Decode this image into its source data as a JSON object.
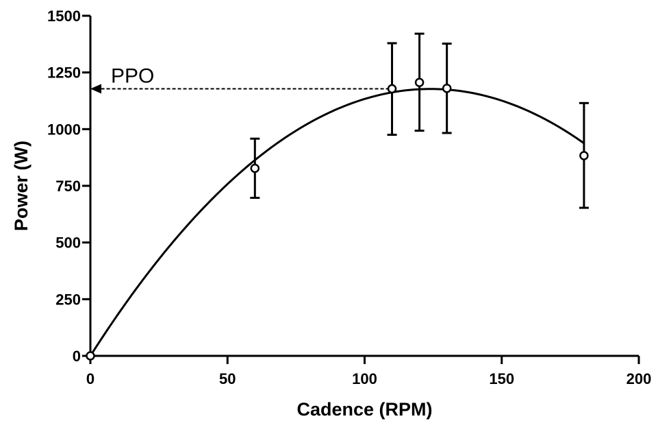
{
  "chart_data": {
    "type": "scatter",
    "title": "",
    "xlabel": "Cadence (RPM)",
    "ylabel": "Power (W)",
    "xlim": [
      0,
      200
    ],
    "ylim": [
      0,
      1500
    ],
    "xticks": [
      0,
      50,
      100,
      150,
      200
    ],
    "yticks": [
      0,
      250,
      500,
      750,
      1000,
      1250,
      1500
    ],
    "xtick_labels": [
      "0",
      "50",
      "100",
      "150",
      "200"
    ],
    "ytick_labels": [
      "0",
      "250",
      "500",
      "750",
      "1000",
      "1250",
      "1500"
    ],
    "grid": false,
    "points": [
      {
        "x": 0,
        "y": 0,
        "err_low": 0,
        "err_high": 0
      },
      {
        "x": 60,
        "y": 827,
        "err_low": 697,
        "err_high": 958
      },
      {
        "x": 110,
        "y": 1178,
        "err_low": 975,
        "err_high": 1379
      },
      {
        "x": 120,
        "y": 1206,
        "err_low": 993,
        "err_high": 1421
      },
      {
        "x": 130,
        "y": 1180,
        "err_low": 983,
        "err_high": 1377
      },
      {
        "x": 180,
        "y": 883,
        "err_low": 653,
        "err_high": 1115
      }
    ],
    "fit_curve": {
      "type": "quadratic",
      "equation": "P = a*C + b*C^2",
      "a": 18.98,
      "b": -0.0765
    },
    "annotations": [
      {
        "text": "PPO",
        "x_from": 111,
        "y": 1178,
        "arrow_to_x": 0
      }
    ]
  }
}
